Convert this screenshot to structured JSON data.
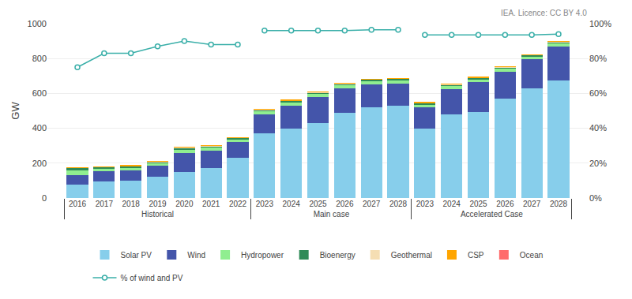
{
  "chart_data": {
    "type": "bar",
    "stacked": true,
    "grid": true,
    "legend": "bottom",
    "ylabel": "GW",
    "annotations": [
      "IEA. Licence: CC BY 4.0"
    ],
    "categories": [
      [
        "Historical",
        "2016"
      ],
      [
        "Historical",
        "2017"
      ],
      [
        "Historical",
        "2018"
      ],
      [
        "Historical",
        "2019"
      ],
      [
        "Historical",
        "2020"
      ],
      [
        "Historical",
        "2021"
      ],
      [
        "Historical",
        "2022"
      ],
      [
        "Main case",
        "2023"
      ],
      [
        "Main case",
        "2024"
      ],
      [
        "Main case",
        "2025"
      ],
      [
        "Main case",
        "2026"
      ],
      [
        "Main case",
        "2027"
      ],
      [
        "Main case",
        "2028"
      ],
      [
        "Accelerated Case",
        "2023"
      ],
      [
        "Accelerated Case",
        "2024"
      ],
      [
        "Accelerated Case",
        "2025"
      ],
      [
        "Accelerated Case",
        "2026"
      ],
      [
        "Accelerated Case",
        "2027"
      ],
      [
        "Accelerated Case",
        "2028"
      ]
    ],
    "series": [
      {
        "name": "Solar PV",
        "color": "#87CEEB",
        "values": [
          75,
          95,
          100,
          120,
          148,
          170,
          230,
          370,
          400,
          430,
          490,
          520,
          530,
          400,
          480,
          495,
          570,
          630,
          675
        ]
      },
      {
        "name": "Wind",
        "color": "#4455AA",
        "values": [
          55,
          60,
          60,
          65,
          110,
          100,
          90,
          110,
          130,
          150,
          140,
          130,
          125,
          120,
          145,
          170,
          155,
          165,
          195
        ]
      },
      {
        "name": "Hydropower",
        "color": "#90EE90",
        "values": [
          30,
          15,
          15,
          15,
          20,
          18,
          15,
          18,
          22,
          18,
          18,
          22,
          22,
          18,
          18,
          18,
          18,
          18,
          18
        ]
      },
      {
        "name": "Bioenergy",
        "color": "#2E8B57",
        "values": [
          12,
          8,
          8,
          8,
          10,
          10,
          10,
          7,
          7,
          7,
          7,
          7,
          7,
          7,
          7,
          7,
          7,
          7,
          7
        ]
      },
      {
        "name": "Geothermal",
        "color": "#F5DEB3",
        "values": [
          2,
          2,
          2,
          2,
          2,
          2,
          2,
          2,
          2,
          2,
          2,
          2,
          2,
          2,
          2,
          2,
          2,
          2,
          2
        ]
      },
      {
        "name": "CSP",
        "color": "#FFA500",
        "values": [
          1,
          1,
          1,
          1,
          1,
          1,
          1,
          1,
          1,
          1,
          1,
          1,
          1,
          1,
          1,
          1,
          1,
          1,
          1
        ]
      },
      {
        "name": "Ocean",
        "color": "#FF6B6B",
        "values": [
          0,
          0,
          0,
          0,
          0,
          0,
          0,
          0,
          0,
          0,
          0,
          0,
          0,
          0,
          0,
          0,
          0,
          0,
          0
        ]
      },
      {
        "name": "% of wind and PV",
        "type": "line",
        "axis": "y2",
        "marker": "circle",
        "color": "#3AAFA9",
        "values": [
          75.0,
          83.0,
          83.0,
          87.0,
          90.0,
          88.0,
          88.0,
          96.0,
          96.0,
          96.0,
          96.0,
          96.5,
          96.5,
          93.5,
          93.5,
          93.5,
          93.5,
          93.5,
          94.0
        ]
      }
    ],
    "ylim": [
      0,
      1000
    ],
    "yticks": [
      0,
      200,
      400,
      600,
      800,
      1000
    ],
    "y2lim": [
      0,
      100
    ],
    "y2ticks": [
      {
        "value": 0,
        "label": "0%"
      },
      {
        "value": 20,
        "label": "20%"
      },
      {
        "value": 40,
        "label": "40%"
      },
      {
        "value": 60,
        "label": "60%"
      },
      {
        "value": 80,
        "label": "80%"
      },
      {
        "value": 100,
        "label": "100%"
      }
    ]
  }
}
